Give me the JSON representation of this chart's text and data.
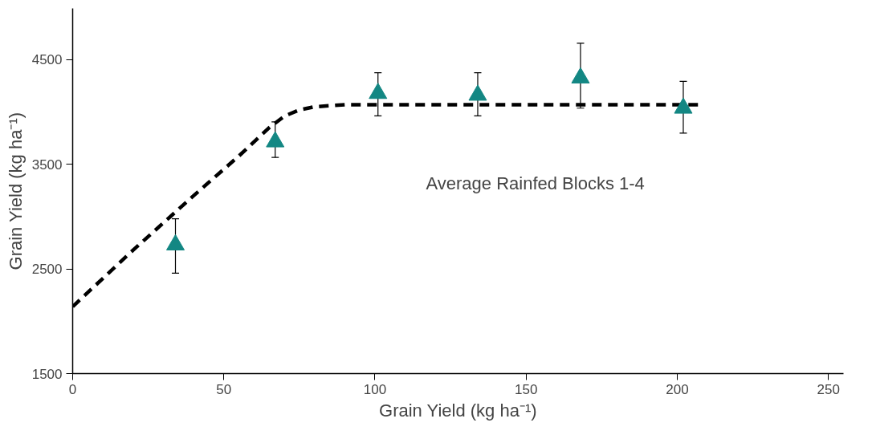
{
  "chart_data": {
    "type": "scatter",
    "xlabel": "Grain Yield (kg ha⁻¹)",
    "ylabel": "Grain Yield (kg ha⁻¹)",
    "xlim": [
      0,
      255
    ],
    "ylim": [
      1500,
      4990
    ],
    "xticks": [
      0,
      50,
      100,
      150,
      200,
      250
    ],
    "yticks": [
      1500,
      2500,
      3500,
      4500
    ],
    "grid": false,
    "annotations": [
      "Average Rainfed Blocks 1-4"
    ],
    "series": [
      {
        "type": "line",
        "color": "#000000",
        "line_style": "dashed",
        "marker": "none",
        "x": [
          0,
          20,
          40,
          55,
          65,
          70,
          75,
          80,
          90,
          207
        ],
        "values": [
          2140,
          2680,
          3200,
          3580,
          3850,
          3960,
          4020,
          4050,
          4070,
          4070
        ]
      },
      {
        "color": "#138783",
        "marker": "triangle",
        "x": [
          34,
          67,
          101,
          134,
          168,
          202
        ],
        "values": [
          2730,
          3715,
          4178,
          4161,
          4326,
          4037
        ],
        "errors": [
          [
            2460,
            2980
          ],
          [
            3566,
            3905
          ],
          [
            3963,
            4376
          ],
          [
            3963,
            4376
          ],
          [
            4037,
            4657
          ],
          [
            3798,
            4293
          ]
        ]
      }
    ]
  }
}
